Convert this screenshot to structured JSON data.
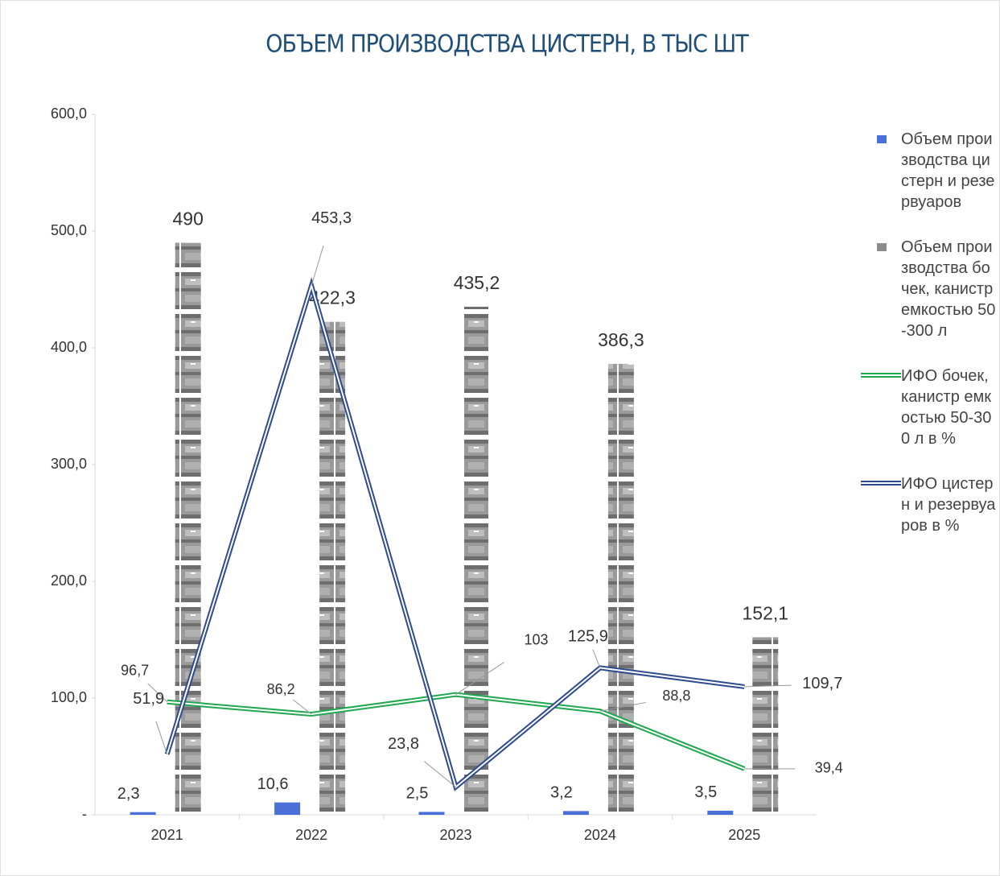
{
  "chart_data": {
    "type": "bar_line",
    "title": "ОБЪЕМ ПРОИЗВОДСТВА ЦИСТЕРН, В ТЫС ШТ",
    "categories": [
      "2021",
      "2022",
      "2023",
      "2024",
      "2025"
    ],
    "ylim": [
      0,
      600
    ],
    "yticks": [
      {
        "value": 0,
        "label": "-"
      },
      {
        "value": 100,
        "label": "100,0"
      },
      {
        "value": 200,
        "label": "200,0"
      },
      {
        "value": 300,
        "label": "300,0"
      },
      {
        "value": 400,
        "label": "400,0"
      },
      {
        "value": 500,
        "label": "500,0"
      },
      {
        "value": 600,
        "label": "600,0"
      }
    ],
    "series": [
      {
        "name": "Объем производства цистерн и резервуаров",
        "kind": "bar",
        "color": "#4a6fd8",
        "values": [
          2.3,
          10.6,
          2.5,
          3.2,
          3.5
        ],
        "value_labels": [
          "2,3",
          "10,6",
          "2,5",
          "3,2",
          "3,5"
        ]
      },
      {
        "name": "Объем производства бочек, канистр емкостью 50-300 л",
        "kind": "bar",
        "color": "#8c8c8c",
        "values": [
          490,
          422.3,
          435.2,
          386.3,
          152.1
        ],
        "value_labels": [
          "490",
          "422,3",
          "435,2",
          "386,3",
          "152,1"
        ]
      },
      {
        "name": "ИФО бочек, канистр емкостью 50-300 л в %",
        "kind": "line",
        "color": "#1fa84f",
        "values": [
          96.7,
          86.2,
          103,
          88.8,
          39.4
        ],
        "value_labels": [
          "96,7",
          "86,2",
          "103",
          "88,8",
          "39,4"
        ]
      },
      {
        "name": "ИФО цистерн и резервуаров в %",
        "kind": "line",
        "color": "#2e4b8f",
        "values": [
          51.9,
          453.3,
          23.8,
          125.9,
          109.7
        ],
        "value_labels": [
          "51,9",
          "453,3",
          "23,8",
          "125,9",
          "109,7"
        ]
      }
    ]
  }
}
